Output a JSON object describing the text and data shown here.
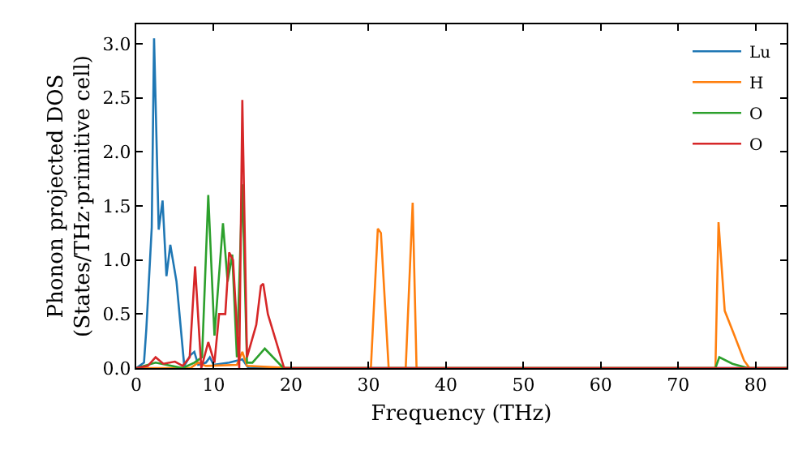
{
  "chart_data": {
    "type": "line",
    "xlabel": "Frequency (THz)",
    "ylabel": "Phonon projected DOS\n(States/THz·primitive cell)",
    "xlim": [
      0,
      84
    ],
    "ylim": [
      0,
      3.18
    ],
    "xticks": [
      0,
      10,
      20,
      30,
      40,
      50,
      60,
      70,
      80
    ],
    "yticks": [
      {
        "value": 0,
        "label": "0.0"
      },
      {
        "value": 0.5,
        "label": "0.5"
      },
      {
        "value": 1,
        "label": "1.0"
      },
      {
        "value": 1.5,
        "label": "1.5"
      },
      {
        "value": 2,
        "label": "2.0"
      },
      {
        "value": 2.5,
        "label": "2.5"
      },
      {
        "value": 3,
        "label": "3.0"
      }
    ],
    "legend": "top right",
    "series": [
      {
        "name": "Lu",
        "color": "#1f77b4",
        "x": [
          0,
          1,
          1.3,
          2,
          2.3,
          2.9,
          3.4,
          3.9,
          4.4,
          5.2,
          6.2,
          7,
          7.5,
          8,
          9,
          9.5,
          10,
          12,
          13.7,
          14.5,
          20,
          84
        ],
        "values": [
          0,
          0.05,
          0.36,
          1.3,
          3.05,
          1.28,
          1.55,
          0.85,
          1.14,
          0.8,
          0.02,
          0.12,
          0.15,
          0.03,
          0.05,
          0.1,
          0.03,
          0.05,
          0.08,
          0,
          0,
          0
        ]
      },
      {
        "name": "H",
        "color": "#ff7f0e",
        "x": [
          0,
          7,
          8,
          9,
          13,
          13.7,
          14.3,
          20,
          30.3,
          31.2,
          31.6,
          32.6,
          34.8,
          35.7,
          36.2,
          74.8,
          75.2,
          76,
          77.1,
          78.5,
          79.2,
          84
        ],
        "values": [
          0,
          0,
          0.05,
          0.02,
          0.03,
          0.15,
          0.02,
          0,
          0,
          1.29,
          1.25,
          0,
          0,
          1.53,
          0,
          0,
          1.35,
          0.53,
          0.33,
          0.07,
          0,
          0
        ]
      },
      {
        "name": "O",
        "color": "#2ca02c",
        "x": [
          0,
          2.5,
          6,
          7.5,
          8.5,
          9.3,
          10.1,
          11.2,
          11.8,
          12.4,
          13,
          13.7,
          14.3,
          15,
          16.6,
          19,
          74.8,
          75.3,
          77,
          79,
          84
        ],
        "values": [
          0,
          0.05,
          0,
          0.05,
          0.1,
          1.6,
          0.3,
          1.34,
          0.8,
          1.05,
          0.1,
          1.7,
          0.05,
          0.05,
          0.18,
          0,
          0,
          0.1,
          0.04,
          0,
          0
        ]
      },
      {
        "name": "O",
        "color": "#d62728",
        "x": [
          0,
          1.5,
          2.5,
          3.5,
          5,
          6,
          6.9,
          7.6,
          8.4,
          9.3,
          10.1,
          10.7,
          11.5,
          12,
          12.5,
          13.3,
          13.7,
          14.3,
          15.5,
          16.1,
          16.4,
          17,
          19.1,
          84
        ],
        "values": [
          0,
          0.02,
          0.1,
          0.04,
          0.06,
          0.02,
          0.1,
          0.94,
          0,
          0.24,
          0.05,
          0.5,
          0.5,
          1.07,
          1.0,
          0,
          2.48,
          0.1,
          0.4,
          0.76,
          0.78,
          0.5,
          0,
          0
        ]
      }
    ]
  }
}
